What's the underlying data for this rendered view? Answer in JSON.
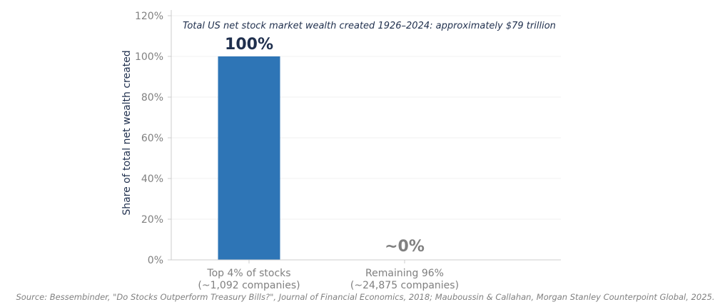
{
  "chart_data": {
    "type": "bar",
    "title": "",
    "ylabel": "Share of total net wealth created",
    "xlabel": "",
    "ylim": [
      0,
      120
    ],
    "yticks": [
      0,
      20,
      40,
      60,
      80,
      100,
      120
    ],
    "ytick_format": "%",
    "grid": true,
    "categories": [
      [
        "Top 4% of stocks",
        "(~1,092 companies)"
      ],
      [
        "Remaining 96%",
        "(~24,875 companies)"
      ]
    ],
    "values": [
      100,
      0
    ],
    "data_labels": [
      "100%",
      "~0%"
    ],
    "colors": {
      "bar": "#2e75b6",
      "label_strong": "#1f2f4d",
      "label_muted": "#808080",
      "axis": "#cccccc",
      "grid": "#f0f0f0"
    },
    "annotation": "Total US net stock market wealth created 1926–2024: approximately $79 trillion"
  },
  "source": "Source: Bessembinder, \"Do Stocks Outperform Treasury Bills?\", Journal of Financial Economics, 2018; Mauboussin & Callahan, Morgan Stanley Counterpoint Global, 2025."
}
